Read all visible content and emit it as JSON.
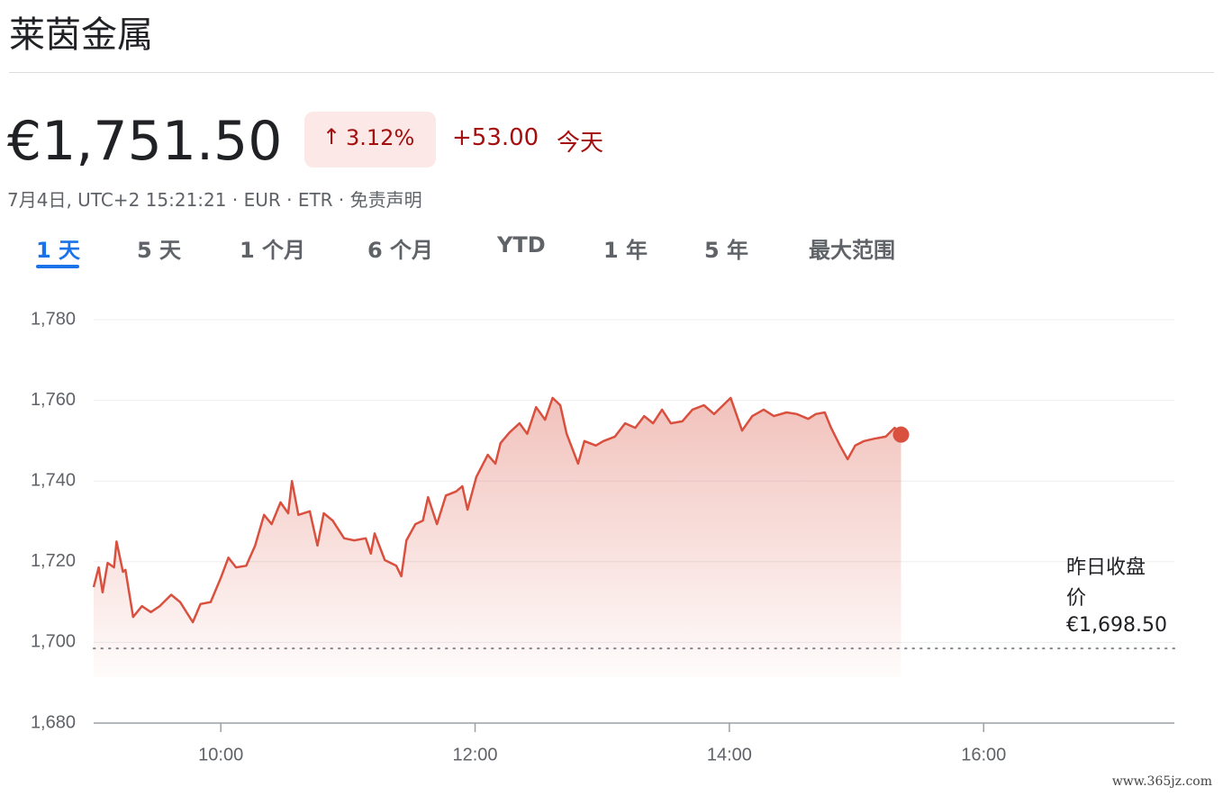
{
  "header": {
    "title": "莱茵金属",
    "price": "€1,751.50",
    "change_percent": "3.12%",
    "change_amount": "+53.00",
    "period": "今天"
  },
  "meta": [
    "7月4日, UTC+2 15:21:21",
    "EUR",
    "ETR",
    "免责声明"
  ],
  "tabs": [
    "1 天",
    "5 天",
    "1 个月",
    "6 个月",
    "YTD",
    "1 年",
    "5 年",
    "最大范围"
  ],
  "active_tab": 0,
  "watermark": "www.365jz.com",
  "chart_data": {
    "type": "line",
    "color": "#d9503f",
    "grid": true,
    "x": [
      9.0,
      9.04,
      9.07,
      9.11,
      9.16,
      9.18,
      9.23,
      9.25,
      9.31,
      9.38,
      9.45,
      9.52,
      9.61,
      9.68,
      9.78,
      9.84,
      9.92,
      10.0,
      10.06,
      10.12,
      10.2,
      10.27,
      10.34,
      10.4,
      10.47,
      10.53,
      10.56,
      10.61,
      10.7,
      10.76,
      10.81,
      10.88,
      10.97,
      11.05,
      11.14,
      11.18,
      11.21,
      11.29,
      11.38,
      11.42,
      11.46,
      11.53,
      11.59,
      11.63,
      11.7,
      11.77,
      11.85,
      11.9,
      11.94,
      12.01,
      12.1,
      12.16,
      12.2,
      12.27,
      12.35,
      12.41,
      12.48,
      12.55,
      12.61,
      12.67,
      12.72,
      12.81,
      12.86,
      12.95,
      13.01,
      13.1,
      13.18,
      13.26,
      13.33,
      13.4,
      13.47,
      13.54,
      13.63,
      13.71,
      13.8,
      13.88,
      14.01,
      14.1,
      14.18,
      14.27,
      14.35,
      14.45,
      14.53,
      14.62,
      14.68,
      14.75,
      14.8,
      14.87,
      14.93,
      14.99,
      15.06,
      15.14,
      15.23,
      15.3,
      15.35
    ],
    "values": [
      1713.7,
      1718.6,
      1712.4,
      1719.7,
      1718.6,
      1725.0,
      1717.5,
      1718.0,
      1706.3,
      1709.0,
      1707.5,
      1709.0,
      1711.8,
      1710.0,
      1705.0,
      1709.5,
      1710.0,
      1716.0,
      1721.0,
      1718.6,
      1719.0,
      1724.0,
      1731.6,
      1729.3,
      1734.7,
      1732.0,
      1740.0,
      1731.6,
      1732.5,
      1724.0,
      1732.0,
      1730.2,
      1725.8,
      1725.3,
      1725.8,
      1722.0,
      1727.0,
      1720.4,
      1719.0,
      1716.4,
      1725.3,
      1729.3,
      1730.2,
      1736.0,
      1729.3,
      1736.4,
      1737.4,
      1738.7,
      1732.9,
      1741.0,
      1746.5,
      1744.3,
      1749.4,
      1752.0,
      1754.3,
      1751.7,
      1758.3,
      1755.2,
      1760.6,
      1758.8,
      1751.7,
      1744.3,
      1749.9,
      1748.8,
      1749.9,
      1751.0,
      1754.3,
      1753.2,
      1756.1,
      1754.3,
      1757.7,
      1754.3,
      1754.8,
      1757.7,
      1758.8,
      1756.6,
      1760.6,
      1752.5,
      1756.1,
      1757.7,
      1756.1,
      1757.0,
      1756.6,
      1755.4,
      1756.6,
      1757.0,
      1753.2,
      1748.8,
      1745.4,
      1748.8,
      1749.9,
      1750.5,
      1751.0,
      1753.2,
      1751.5
    ],
    "xlim": [
      9,
      17.5
    ],
    "xticks": [
      {
        "value": 10,
        "label": "10:00"
      },
      {
        "value": 12,
        "label": "12:00"
      },
      {
        "value": 14,
        "label": "14:00"
      },
      {
        "value": 16,
        "label": "16:00"
      }
    ],
    "ylim": [
      1680,
      1780
    ],
    "yticks": [
      {
        "value": 1680,
        "label": "1,680"
      },
      {
        "value": 1700,
        "label": "1,700"
      },
      {
        "value": 1720,
        "label": "1,720"
      },
      {
        "value": 1740,
        "label": "1,740"
      },
      {
        "value": 1760,
        "label": "1,760"
      },
      {
        "value": 1780,
        "label": "1,780"
      }
    ],
    "previous_close": {
      "title": "昨日收盘价",
      "value": 1698.5,
      "label": "€1,698.50"
    }
  }
}
